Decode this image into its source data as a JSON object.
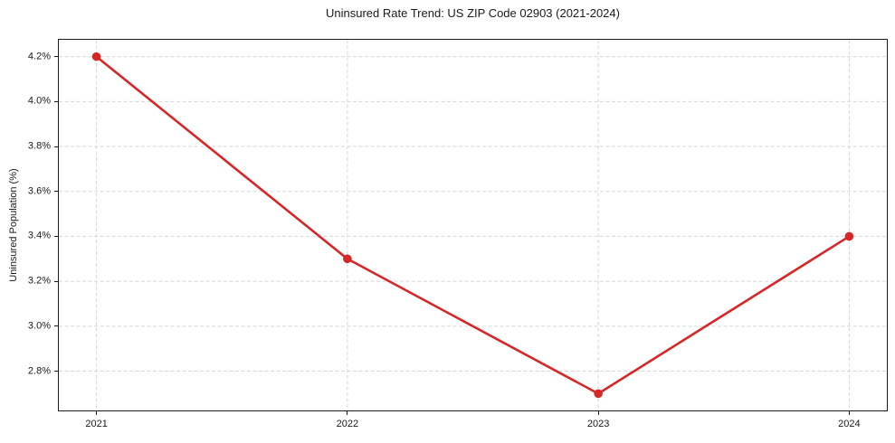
{
  "chart_data": {
    "type": "line",
    "title": "Uninsured Rate Trend: US ZIP Code 02903 (2021-2024)",
    "xlabel": "",
    "ylabel": "Uninsured Population (%)",
    "x": [
      2021,
      2022,
      2023,
      2024
    ],
    "values": [
      4.2,
      3.3,
      2.7,
      3.4
    ],
    "value_labels": [
      "4.2%",
      "3.3%",
      "2.7%",
      "3.4%"
    ],
    "x_tick_labels": [
      "2021",
      "2022",
      "2023",
      "2024"
    ],
    "y_ticks": [
      2.8,
      3.0,
      3.2,
      3.4,
      3.6,
      3.8,
      4.0,
      4.2
    ],
    "y_tick_labels": [
      "2.8%",
      "3.0%",
      "3.2%",
      "3.4%",
      "3.6%",
      "3.8%",
      "4.0%",
      "4.2%"
    ],
    "xlim": [
      2020.85,
      2024.15
    ],
    "ylim": [
      2.625,
      4.275
    ],
    "grid": true,
    "legend": false,
    "line_color": "#d62728",
    "marker": "o",
    "marker_radius": 4.8,
    "line_width": 2.6
  }
}
